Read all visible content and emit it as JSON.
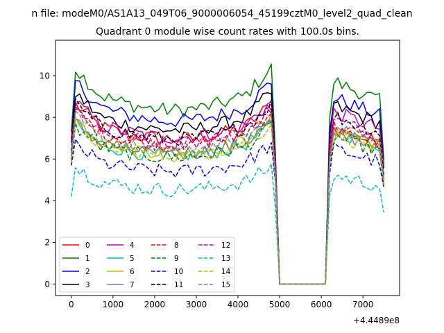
{
  "chart_data": {
    "type": "line",
    "suptitle": "n file: modeM0/AS1A13_049T06_9000006054_45199cztM0_level2_quad_clean",
    "title": "Quadrant 0 module wise count rates with 100.0s bins.",
    "xlabel": "",
    "ylabel": "",
    "x_offset_label": "+4.4489e8",
    "xlim": [
      -380,
      7880
    ],
    "ylim": [
      -0.55,
      11.7
    ],
    "x_ticks": [
      0,
      1000,
      2000,
      3000,
      4000,
      5000,
      6000,
      7000
    ],
    "x_tick_labels": [
      "0",
      "1000",
      "2000",
      "3000",
      "4000",
      "5000",
      "6000",
      "7000"
    ],
    "y_ticks": [
      0,
      2,
      4,
      6,
      8,
      10
    ],
    "y_tick_labels": [
      "0",
      "2",
      "4",
      "6",
      "8",
      "10"
    ],
    "grid": false,
    "legend": {
      "placement": "lower-left",
      "columns": 4
    },
    "bin_size": 100,
    "segments": [
      {
        "t_start": 0,
        "t_end": 7500,
        "gaps": [
          {
            "from": 4900,
            "to": 6100,
            "value": 0
          }
        ]
      }
    ],
    "series": [
      {
        "name": "0",
        "color": "#ff0000",
        "style": "solid",
        "pre": 8.0,
        "post": 7.6,
        "edge": 5.8
      },
      {
        "name": "1",
        "color": "#008000",
        "style": "solid",
        "pre": 9.6,
        "post": 9.9,
        "edge": 7.3
      },
      {
        "name": "2",
        "color": "#0000ff",
        "style": "solid",
        "pre": 9.0,
        "post": 9.1,
        "edge": 6.8
      },
      {
        "name": "3",
        "color": "#000000",
        "style": "solid",
        "pre": 8.5,
        "post": 8.7,
        "edge": 7.0
      },
      {
        "name": "4",
        "color": "#bf00bf",
        "style": "solid",
        "pre": 8.1,
        "post": 8.4,
        "edge": 6.9
      },
      {
        "name": "5",
        "color": "#00bfbf",
        "style": "solid",
        "pre": 7.1,
        "post": 7.5,
        "edge": 5.9
      },
      {
        "name": "6",
        "color": "#bfbf00",
        "style": "solid",
        "pre": 7.3,
        "post": 7.6,
        "edge": 6.0
      },
      {
        "name": "7",
        "color": "#808080",
        "style": "solid",
        "pre": 7.2,
        "post": 7.4,
        "edge": 5.9
      },
      {
        "name": "8",
        "color": "#ff0000",
        "style": "dashed",
        "pre": 7.7,
        "post": 7.7,
        "edge": 6.1
      },
      {
        "name": "9",
        "color": "#008000",
        "style": "dashed",
        "pre": 7.0,
        "post": 7.2,
        "edge": 5.7
      },
      {
        "name": "10",
        "color": "#0000ff",
        "style": "dashed",
        "pre": 6.2,
        "post": 6.6,
        "edge": 5.7
      },
      {
        "name": "11",
        "color": "#000000",
        "style": "dashed",
        "pre": 8.0,
        "post": 8.2,
        "edge": 6.4
      },
      {
        "name": "12",
        "color": "#bf00bf",
        "style": "dashed",
        "pre": 7.8,
        "post": 8.0,
        "edge": 6.3
      },
      {
        "name": "13",
        "color": "#00bfbf",
        "style": "dashed",
        "pre": 5.2,
        "post": 5.3,
        "edge": 4.2
      },
      {
        "name": "14",
        "color": "#bfbf00",
        "style": "dashed",
        "pre": 7.1,
        "post": 7.3,
        "edge": 5.8
      },
      {
        "name": "15",
        "color": "#808080",
        "style": "dashed",
        "pre": 7.4,
        "post": 7.6,
        "edge": 6.2
      }
    ]
  }
}
